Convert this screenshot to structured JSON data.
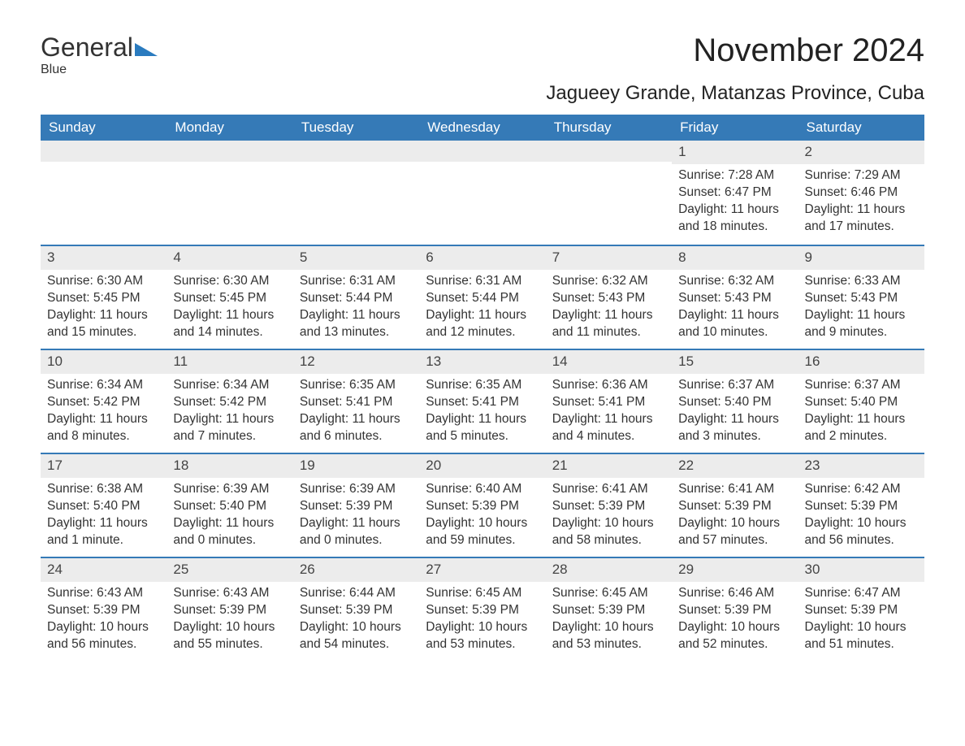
{
  "logo": {
    "text1": "General",
    "text2": "Blue"
  },
  "title": "November 2024",
  "location": "Jagueey Grande, Matanzas Province, Cuba",
  "colors": {
    "header_bg": "#357ab7",
    "header_text": "#ffffff",
    "daynum_bg": "#ececec",
    "border": "#357ab7",
    "body_text": "#333333",
    "logo_accent": "#2a7bbf",
    "background": "#ffffff"
  },
  "day_headers": [
    "Sunday",
    "Monday",
    "Tuesday",
    "Wednesday",
    "Thursday",
    "Friday",
    "Saturday"
  ],
  "weeks": [
    [
      {
        "empty": true
      },
      {
        "empty": true
      },
      {
        "empty": true
      },
      {
        "empty": true
      },
      {
        "empty": true
      },
      {
        "num": "1",
        "sunrise": "Sunrise: 7:28 AM",
        "sunset": "Sunset: 6:47 PM",
        "daylight": "Daylight: 11 hours and 18 minutes."
      },
      {
        "num": "2",
        "sunrise": "Sunrise: 7:29 AM",
        "sunset": "Sunset: 6:46 PM",
        "daylight": "Daylight: 11 hours and 17 minutes."
      }
    ],
    [
      {
        "num": "3",
        "sunrise": "Sunrise: 6:30 AM",
        "sunset": "Sunset: 5:45 PM",
        "daylight": "Daylight: 11 hours and 15 minutes."
      },
      {
        "num": "4",
        "sunrise": "Sunrise: 6:30 AM",
        "sunset": "Sunset: 5:45 PM",
        "daylight": "Daylight: 11 hours and 14 minutes."
      },
      {
        "num": "5",
        "sunrise": "Sunrise: 6:31 AM",
        "sunset": "Sunset: 5:44 PM",
        "daylight": "Daylight: 11 hours and 13 minutes."
      },
      {
        "num": "6",
        "sunrise": "Sunrise: 6:31 AM",
        "sunset": "Sunset: 5:44 PM",
        "daylight": "Daylight: 11 hours and 12 minutes."
      },
      {
        "num": "7",
        "sunrise": "Sunrise: 6:32 AM",
        "sunset": "Sunset: 5:43 PM",
        "daylight": "Daylight: 11 hours and 11 minutes."
      },
      {
        "num": "8",
        "sunrise": "Sunrise: 6:32 AM",
        "sunset": "Sunset: 5:43 PM",
        "daylight": "Daylight: 11 hours and 10 minutes."
      },
      {
        "num": "9",
        "sunrise": "Sunrise: 6:33 AM",
        "sunset": "Sunset: 5:43 PM",
        "daylight": "Daylight: 11 hours and 9 minutes."
      }
    ],
    [
      {
        "num": "10",
        "sunrise": "Sunrise: 6:34 AM",
        "sunset": "Sunset: 5:42 PM",
        "daylight": "Daylight: 11 hours and 8 minutes."
      },
      {
        "num": "11",
        "sunrise": "Sunrise: 6:34 AM",
        "sunset": "Sunset: 5:42 PM",
        "daylight": "Daylight: 11 hours and 7 minutes."
      },
      {
        "num": "12",
        "sunrise": "Sunrise: 6:35 AM",
        "sunset": "Sunset: 5:41 PM",
        "daylight": "Daylight: 11 hours and 6 minutes."
      },
      {
        "num": "13",
        "sunrise": "Sunrise: 6:35 AM",
        "sunset": "Sunset: 5:41 PM",
        "daylight": "Daylight: 11 hours and 5 minutes."
      },
      {
        "num": "14",
        "sunrise": "Sunrise: 6:36 AM",
        "sunset": "Sunset: 5:41 PM",
        "daylight": "Daylight: 11 hours and 4 minutes."
      },
      {
        "num": "15",
        "sunrise": "Sunrise: 6:37 AM",
        "sunset": "Sunset: 5:40 PM",
        "daylight": "Daylight: 11 hours and 3 minutes."
      },
      {
        "num": "16",
        "sunrise": "Sunrise: 6:37 AM",
        "sunset": "Sunset: 5:40 PM",
        "daylight": "Daylight: 11 hours and 2 minutes."
      }
    ],
    [
      {
        "num": "17",
        "sunrise": "Sunrise: 6:38 AM",
        "sunset": "Sunset: 5:40 PM",
        "daylight": "Daylight: 11 hours and 1 minute."
      },
      {
        "num": "18",
        "sunrise": "Sunrise: 6:39 AM",
        "sunset": "Sunset: 5:40 PM",
        "daylight": "Daylight: 11 hours and 0 minutes."
      },
      {
        "num": "19",
        "sunrise": "Sunrise: 6:39 AM",
        "sunset": "Sunset: 5:39 PM",
        "daylight": "Daylight: 11 hours and 0 minutes."
      },
      {
        "num": "20",
        "sunrise": "Sunrise: 6:40 AM",
        "sunset": "Sunset: 5:39 PM",
        "daylight": "Daylight: 10 hours and 59 minutes."
      },
      {
        "num": "21",
        "sunrise": "Sunrise: 6:41 AM",
        "sunset": "Sunset: 5:39 PM",
        "daylight": "Daylight: 10 hours and 58 minutes."
      },
      {
        "num": "22",
        "sunrise": "Sunrise: 6:41 AM",
        "sunset": "Sunset: 5:39 PM",
        "daylight": "Daylight: 10 hours and 57 minutes."
      },
      {
        "num": "23",
        "sunrise": "Sunrise: 6:42 AM",
        "sunset": "Sunset: 5:39 PM",
        "daylight": "Daylight: 10 hours and 56 minutes."
      }
    ],
    [
      {
        "num": "24",
        "sunrise": "Sunrise: 6:43 AM",
        "sunset": "Sunset: 5:39 PM",
        "daylight": "Daylight: 10 hours and 56 minutes."
      },
      {
        "num": "25",
        "sunrise": "Sunrise: 6:43 AM",
        "sunset": "Sunset: 5:39 PM",
        "daylight": "Daylight: 10 hours and 55 minutes."
      },
      {
        "num": "26",
        "sunrise": "Sunrise: 6:44 AM",
        "sunset": "Sunset: 5:39 PM",
        "daylight": "Daylight: 10 hours and 54 minutes."
      },
      {
        "num": "27",
        "sunrise": "Sunrise: 6:45 AM",
        "sunset": "Sunset: 5:39 PM",
        "daylight": "Daylight: 10 hours and 53 minutes."
      },
      {
        "num": "28",
        "sunrise": "Sunrise: 6:45 AM",
        "sunset": "Sunset: 5:39 PM",
        "daylight": "Daylight: 10 hours and 53 minutes."
      },
      {
        "num": "29",
        "sunrise": "Sunrise: 6:46 AM",
        "sunset": "Sunset: 5:39 PM",
        "daylight": "Daylight: 10 hours and 52 minutes."
      },
      {
        "num": "30",
        "sunrise": "Sunrise: 6:47 AM",
        "sunset": "Sunset: 5:39 PM",
        "daylight": "Daylight: 10 hours and 51 minutes."
      }
    ]
  ]
}
